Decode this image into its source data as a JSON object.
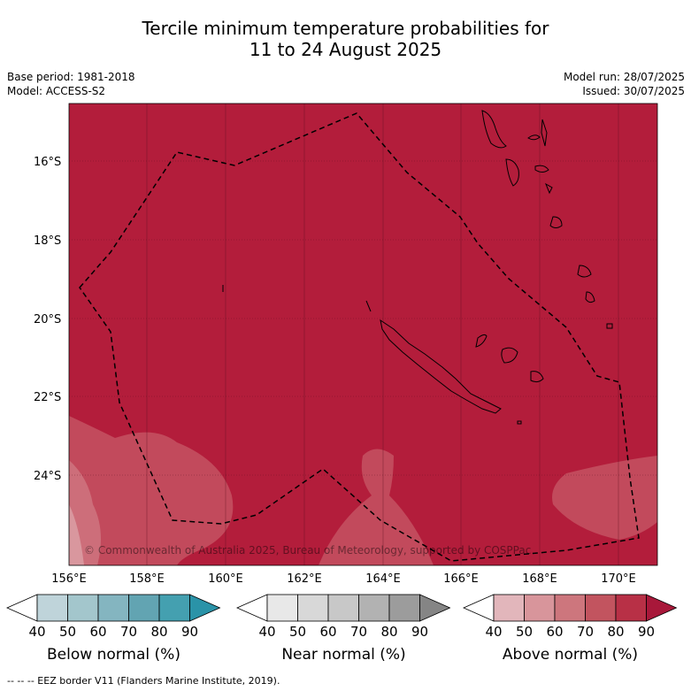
{
  "header": {
    "title_line1": "Tercile minimum temperature probabilities for",
    "title_line2": "11 to 24 August 2025",
    "base_period": "Base period: 1981-2018",
    "model": "Model: ACCESS-S2",
    "model_run": "Model run: 28/07/2025",
    "issued": "Issued: 30/07/2025"
  },
  "map": {
    "lon_ticks": [
      "156°E",
      "158°E",
      "160°E",
      "162°E",
      "164°E",
      "166°E",
      "168°E",
      "170°E"
    ],
    "lat_ticks": [
      "16°S",
      "18°S",
      "20°S",
      "22°S",
      "24°S"
    ],
    "copyright": "© Commonwealth of Australia 2025, Bureau of Meteorology, supported by COSPPac",
    "colors": {
      "above_80_90": "#b31d3b",
      "above_70_80": "#c24a5c",
      "above_60_70": "#cd6e7a",
      "above_50_60": "#d9979e",
      "above_40_50": "#e3b8bb"
    }
  },
  "colorbars": [
    {
      "label": "Below normal (%)",
      "ticks": [
        "40",
        "50",
        "60",
        "70",
        "80",
        "90"
      ],
      "colors": [
        "#bfd4da",
        "#a3c6cc",
        "#84b5c0",
        "#62a4b2",
        "#44a0b0",
        "#2a93a8"
      ]
    },
    {
      "label": "Near normal (%)",
      "ticks": [
        "40",
        "50",
        "60",
        "70",
        "80",
        "90"
      ],
      "colors": [
        "#e8e8e8",
        "#d8d8d8",
        "#c8c8c8",
        "#b2b2b2",
        "#9c9c9c",
        "#858585"
      ]
    },
    {
      "label": "Above normal (%)",
      "ticks": [
        "40",
        "50",
        "60",
        "70",
        "80",
        "90"
      ],
      "colors": [
        "#e2b6bb",
        "#d8959b",
        "#cd767d",
        "#c2545f",
        "#b83046",
        "#a8183a"
      ]
    }
  ],
  "footnote": "--  --  -- EEZ border V11 (Flanders Marine Institute, 2019)."
}
